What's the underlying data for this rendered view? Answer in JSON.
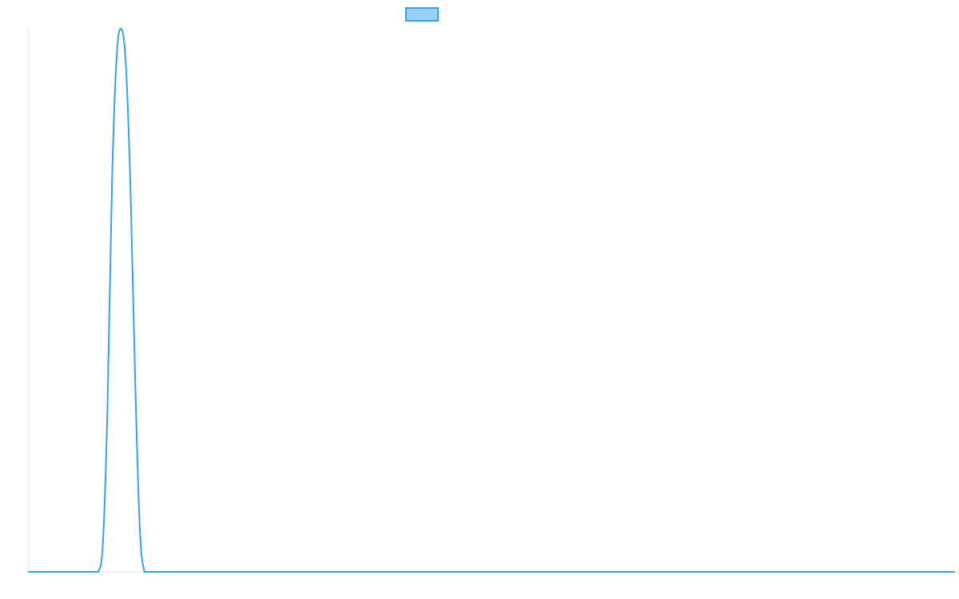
{
  "chart_data": {
    "type": "line",
    "title": "",
    "xlabel": "",
    "ylabel": "",
    "x": [
      0,
      0.5,
      1,
      1.5,
      2,
      2.5,
      3,
      3.5,
      4,
      4.5,
      5,
      5.5,
      6,
      6.5,
      7,
      7.5,
      8,
      8.5,
      9,
      9.5,
      10,
      10.5,
      11,
      11.5,
      12,
      12.5,
      13,
      13.5,
      14,
      14.5,
      15,
      20,
      30,
      40,
      50,
      60,
      70,
      80,
      90,
      100
    ],
    "series": [
      {
        "name": "",
        "color": "#36a2eb",
        "fill": "#9ad0f5",
        "values": [
          0,
          0,
          0,
          0,
          0,
          0,
          0,
          0,
          0,
          0,
          0,
          0,
          0,
          0,
          0,
          0.0,
          0.05,
          0.3,
          0.72,
          0.95,
          1.0,
          0.93,
          0.7,
          0.35,
          0.08,
          0.0,
          0,
          0,
          0,
          0,
          0,
          0,
          0,
          0,
          0,
          0,
          0,
          0,
          0,
          0
        ]
      }
    ],
    "xlim": [
      0,
      100
    ],
    "ylim": [
      0,
      1
    ],
    "grid": false,
    "legend": "top-center"
  }
}
